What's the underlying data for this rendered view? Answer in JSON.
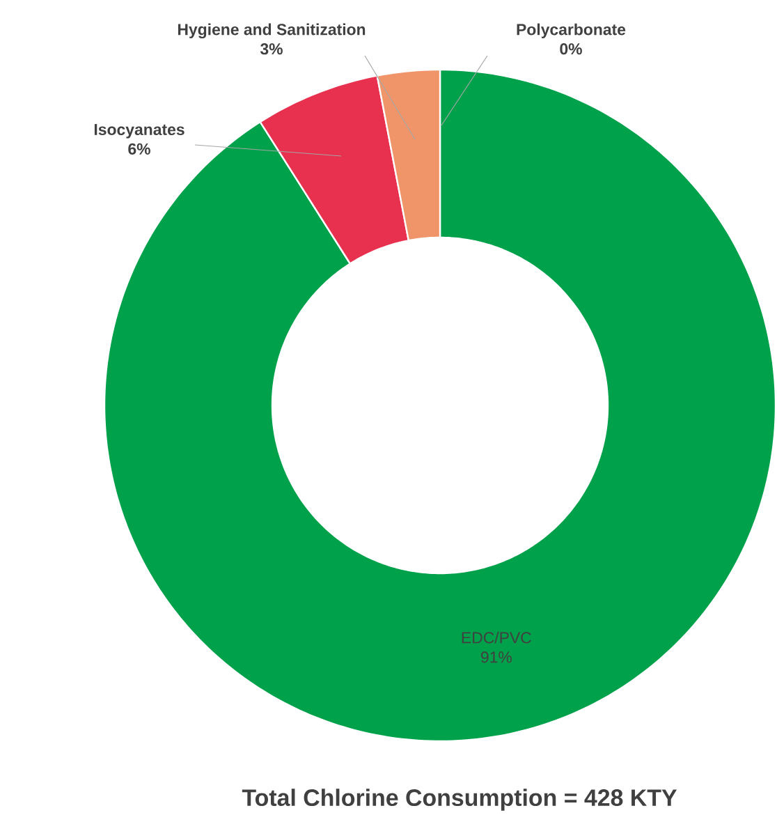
{
  "chart_data": {
    "type": "donut",
    "title": "Total Chlorine Consumption = 428 KTY",
    "categories": [
      "EDC/PVC",
      "Isocyanates",
      "Hygiene and Sanitization",
      "Polycarbonate"
    ],
    "values": [
      91,
      6,
      3,
      0
    ],
    "value_labels": [
      "91%",
      "6%",
      "3%",
      "0%"
    ],
    "colors": [
      "#00a14b",
      "#e8304f",
      "#f0956a",
      "#ffc000"
    ]
  }
}
